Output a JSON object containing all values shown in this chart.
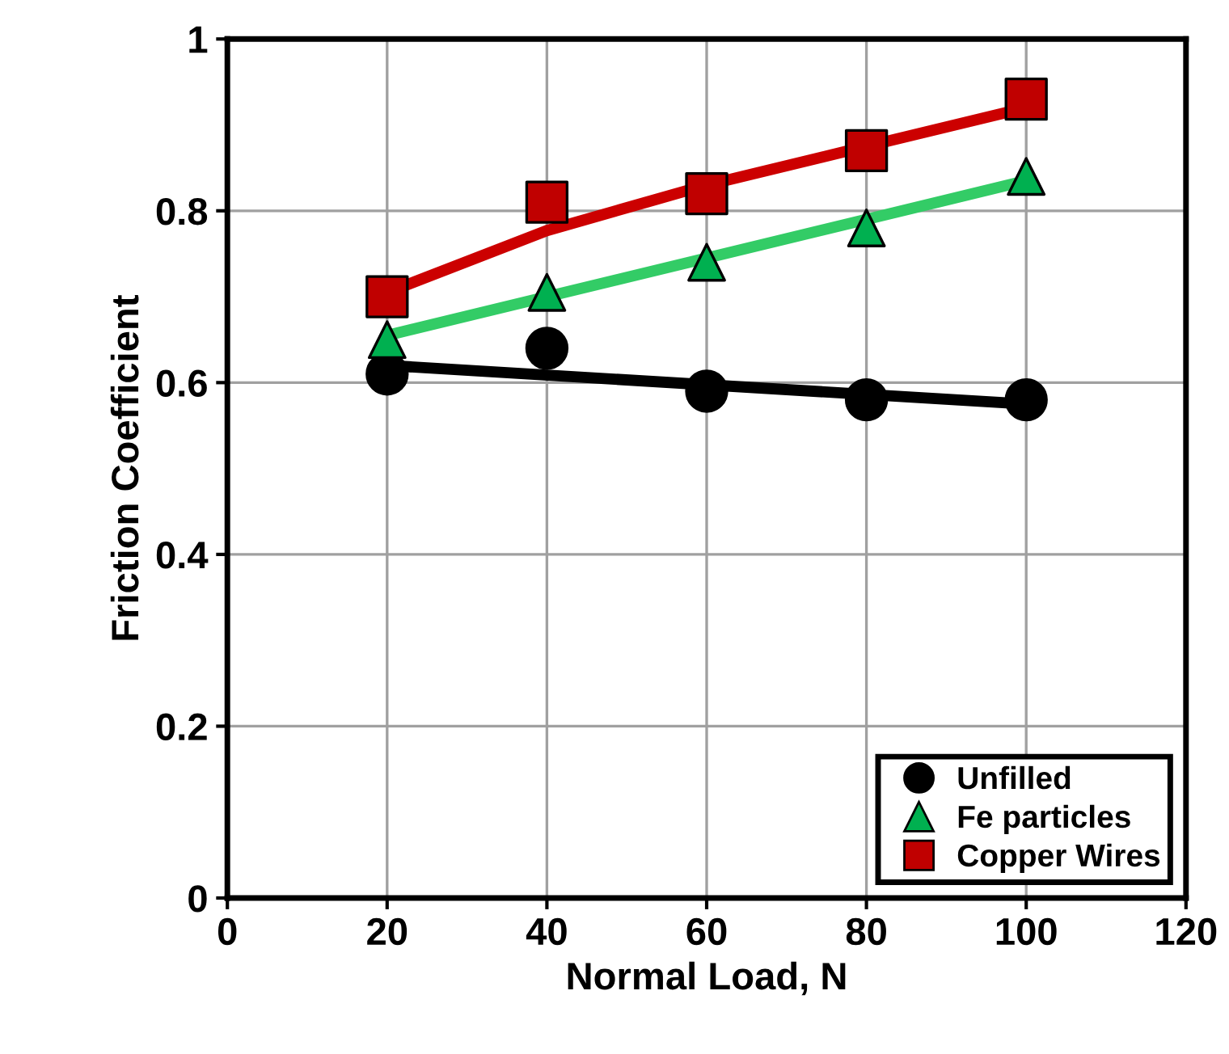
{
  "chart_data": {
    "type": "scatter",
    "xlabel": "Normal Load, N",
    "ylabel": "Friction Coefficient",
    "xlim": [
      0,
      120
    ],
    "xticks": [
      0,
      20,
      40,
      60,
      80,
      100,
      120
    ],
    "ylim": [
      0,
      1
    ],
    "yticks": [
      0,
      0.2,
      0.4,
      0.6,
      0.8,
      1
    ],
    "grid": true,
    "legend": "bottom right",
    "series": [
      {
        "type": "line",
        "color": "#000000",
        "marker": "none",
        "x": [
          20,
          100
        ],
        "values": [
          0.62,
          0.575
        ]
      },
      {
        "type": "line",
        "color": "#33cc66",
        "marker": "none",
        "x": [
          20,
          100
        ],
        "values": [
          0.655,
          0.835
        ]
      },
      {
        "type": "line",
        "color": "#cc0000",
        "marker": "none",
        "x": [
          20,
          40,
          60,
          80,
          100
        ],
        "values": [
          0.705,
          0.777,
          0.83,
          0.875,
          0.92
        ]
      },
      {
        "name": "Unfilled",
        "color": "#000000",
        "marker": "circle",
        "x": [
          20,
          40,
          60,
          80,
          100
        ],
        "values": [
          0.61,
          0.64,
          0.59,
          0.58,
          0.58
        ]
      },
      {
        "name": "Fe particles",
        "color": "#00b050",
        "marker": "triangle",
        "x": [
          20,
          40,
          60,
          80,
          100
        ],
        "values": [
          0.65,
          0.705,
          0.74,
          0.78,
          0.84
        ]
      },
      {
        "name": "Copper Wires",
        "color": "#c00000",
        "marker": "square",
        "x": [
          20,
          40,
          60,
          80,
          100
        ],
        "values": [
          0.7,
          0.81,
          0.82,
          0.87,
          0.93
        ]
      }
    ]
  }
}
